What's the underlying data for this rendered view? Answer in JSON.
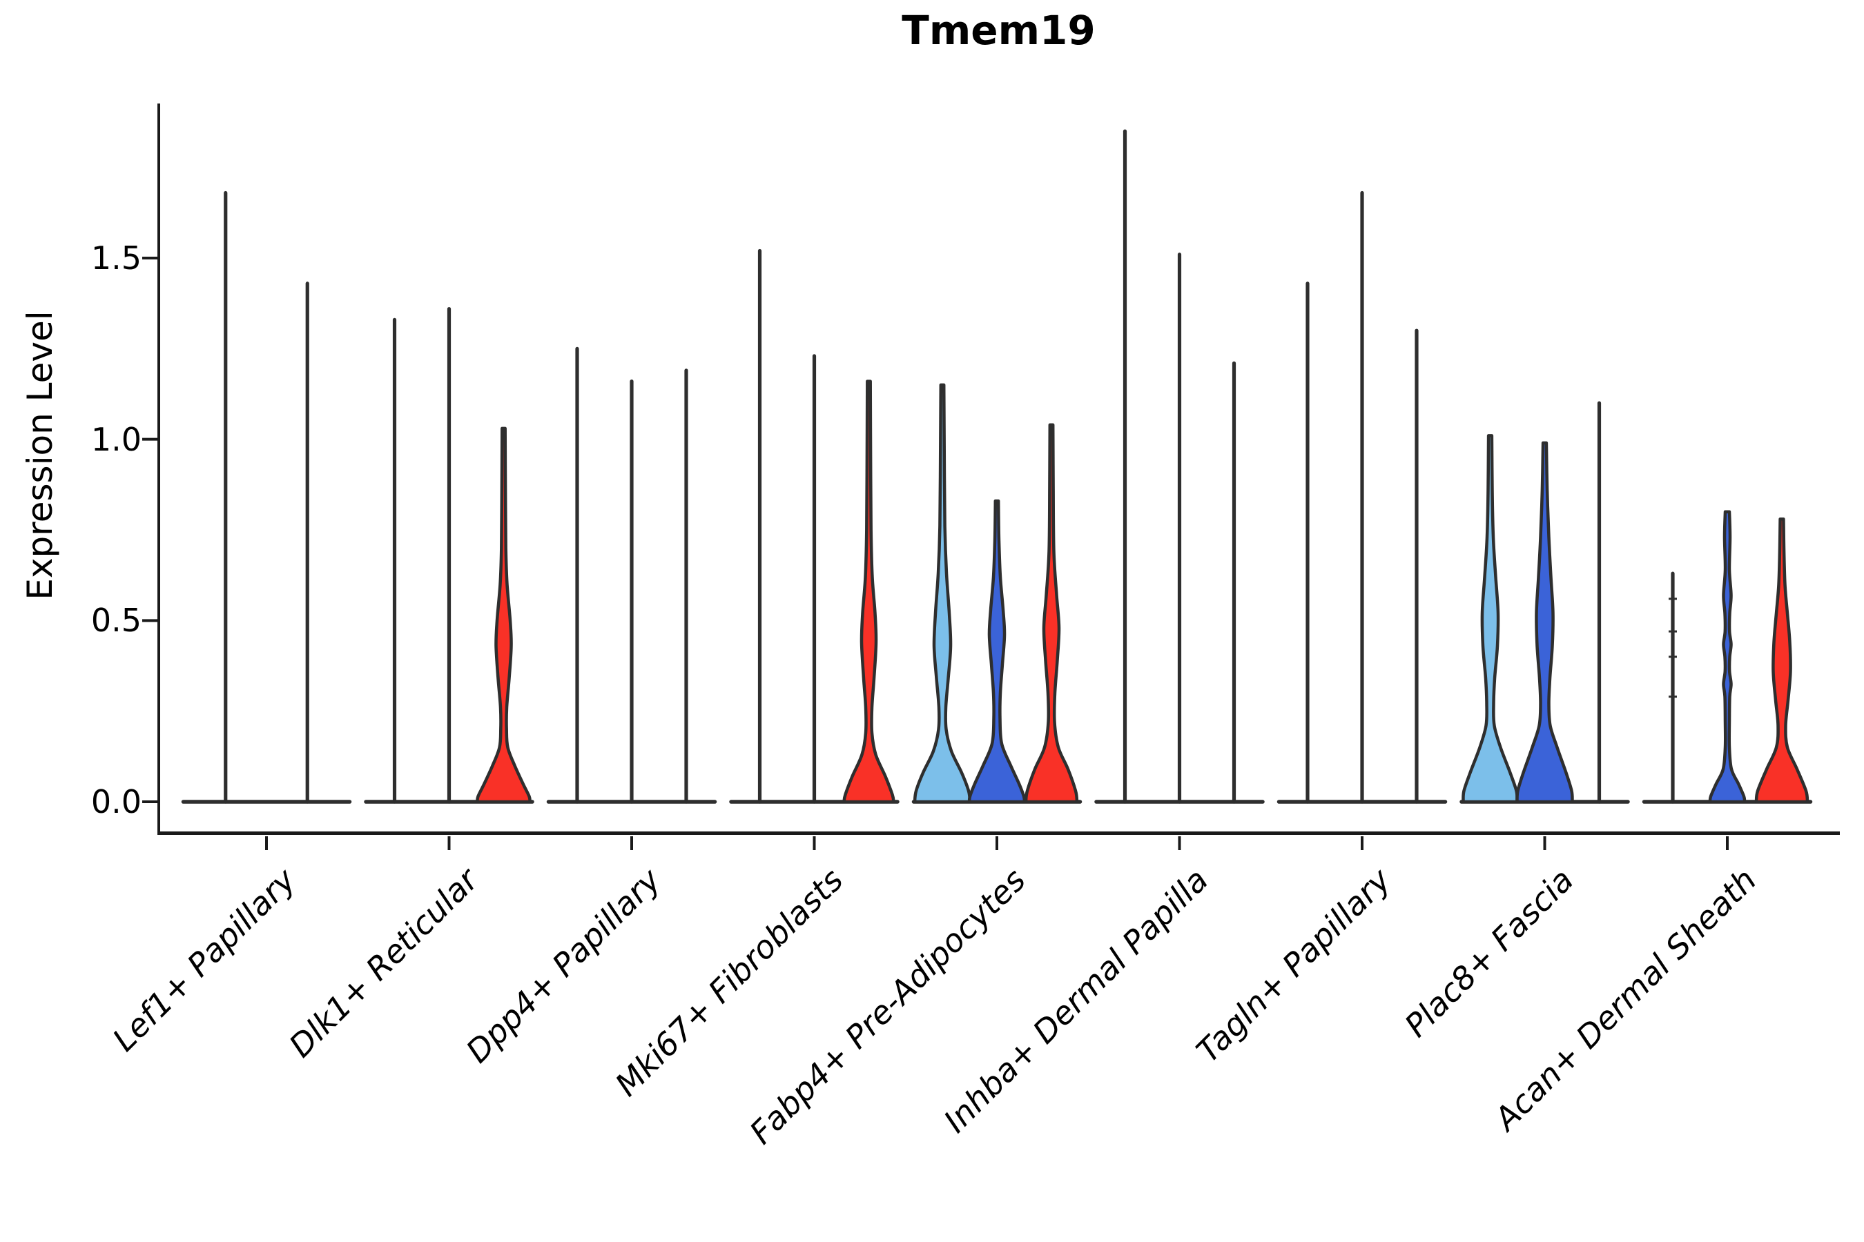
{
  "title": "Tmem19",
  "ylabel": "Expression Level",
  "chart_data": {
    "type": "violin",
    "title": "Tmem19",
    "xlabel": "",
    "ylabel": "Expression Level",
    "ylim": [
      -0.09,
      1.93
    ],
    "yticks": [
      0.0,
      0.5,
      1.0,
      1.5
    ],
    "ytick_labels": [
      "0.0",
      "0.5",
      "1.0",
      "1.5"
    ],
    "grid": false,
    "legend": "none",
    "palette": {
      "light_blue": "#7CBFEA",
      "blue": "#3B63D8",
      "red": "#F93127",
      "outline": "#2E2E2E",
      "spine": "#1A1A1A"
    },
    "categories": [
      "Lef1+ Papillary",
      "Dlk1+ Reticular",
      "Dpp4+ Papillary",
      "Mki67+ Fibroblasts",
      "Fabp4+ Pre-Adipocytes",
      "Inhba+ Dermal Papilla",
      "Tagln+ Papillary",
      "Plac8+ Fascia",
      "Acan+ Dermal Sheath"
    ],
    "groups": [
      {
        "label": "Lef1+ Papillary",
        "violins": [
          {
            "type": "spike",
            "max": 1.68,
            "fill": null
          },
          {
            "type": "spike",
            "max": 1.43,
            "fill": null
          }
        ]
      },
      {
        "label": "Dlk1+ Reticular",
        "violins": [
          {
            "type": "spike",
            "max": 1.33,
            "fill": null
          },
          {
            "type": "spike",
            "max": 1.36,
            "fill": null
          },
          {
            "type": "violin",
            "max": 1.03,
            "fill": "#F93127",
            "profile": [
              [
                1.03,
                2.2
              ],
              [
                0.86,
                2.6
              ],
              [
                0.7,
                3.2
              ],
              [
                0.6,
                5
              ],
              [
                0.5,
                9.5
              ],
              [
                0.43,
                11
              ],
              [
                0.34,
                8
              ],
              [
                0.26,
                4.5
              ],
              [
                0.2,
                4.2
              ],
              [
                0.15,
                6
              ],
              [
                0.1,
                16
              ],
              [
                0.05,
                28
              ],
              [
                0.015,
                37
              ],
              [
                0,
                38
              ]
            ]
          }
        ]
      },
      {
        "label": "Dpp4+ Papillary",
        "violins": [
          {
            "type": "spike",
            "max": 1.25,
            "fill": null
          },
          {
            "type": "spike",
            "max": 1.16,
            "fill": null
          },
          {
            "type": "spike",
            "max": 1.19,
            "fill": null
          }
        ]
      },
      {
        "label": "Mki67+ Fibroblasts",
        "violins": [
          {
            "type": "spike",
            "max": 1.52,
            "fill": null
          },
          {
            "type": "spike",
            "max": 1.23,
            "fill": null
          },
          {
            "type": "violin",
            "max": 1.16,
            "fill": "#F93127",
            "profile": [
              [
                1.16,
                2.2
              ],
              [
                0.95,
                2.6
              ],
              [
                0.75,
                3.2
              ],
              [
                0.62,
                5
              ],
              [
                0.52,
                9
              ],
              [
                0.44,
                10.5
              ],
              [
                0.34,
                7.5
              ],
              [
                0.26,
                4.5
              ],
              [
                0.19,
                4.5
              ],
              [
                0.13,
                10
              ],
              [
                0.07,
                24
              ],
              [
                0.02,
                34
              ],
              [
                0,
                36
              ]
            ]
          }
        ]
      },
      {
        "label": "Fabp4+ Pre-Adipocytes",
        "violins": [
          {
            "type": "violin",
            "max": 1.15,
            "fill": "#7CBFEA",
            "profile": [
              [
                1.15,
                2.2
              ],
              [
                0.95,
                2.8
              ],
              [
                0.76,
                3.6
              ],
              [
                0.63,
                6
              ],
              [
                0.52,
                10
              ],
              [
                0.43,
                12
              ],
              [
                0.34,
                8.5
              ],
              [
                0.26,
                5
              ],
              [
                0.2,
                5.5
              ],
              [
                0.14,
                13
              ],
              [
                0.08,
                28
              ],
              [
                0.03,
                38
              ],
              [
                0,
                40
              ]
            ]
          },
          {
            "type": "violin",
            "max": 0.83,
            "fill": "#3B63D8",
            "profile": [
              [
                0.83,
                2.2
              ],
              [
                0.72,
                3
              ],
              [
                0.62,
                5
              ],
              [
                0.53,
                9
              ],
              [
                0.46,
                11
              ],
              [
                0.38,
                8
              ],
              [
                0.3,
                5
              ],
              [
                0.23,
                4.5
              ],
              [
                0.16,
                7
              ],
              [
                0.1,
                20
              ],
              [
                0.05,
                32
              ],
              [
                0.015,
                39
              ],
              [
                0,
                40
              ]
            ]
          },
          {
            "type": "violin",
            "max": 1.04,
            "fill": "#F93127",
            "profile": [
              [
                1.04,
                2.2
              ],
              [
                0.87,
                2.6
              ],
              [
                0.69,
                3.5
              ],
              [
                0.57,
                7.5
              ],
              [
                0.48,
                11
              ],
              [
                0.39,
                8.5
              ],
              [
                0.3,
                5
              ],
              [
                0.22,
                4.5
              ],
              [
                0.15,
                10
              ],
              [
                0.09,
                24
              ],
              [
                0.03,
                35
              ],
              [
                0,
                37
              ]
            ]
          }
        ]
      },
      {
        "label": "Inhba+ Dermal Papilla",
        "violins": [
          {
            "type": "spike",
            "max": 1.85,
            "fill": null
          },
          {
            "type": "spike",
            "max": 1.51,
            "fill": null
          },
          {
            "type": "spike",
            "max": 1.21,
            "fill": null
          }
        ]
      },
      {
        "label": "Tagln+ Papillary",
        "violins": [
          {
            "type": "spike",
            "max": 1.43,
            "fill": null
          },
          {
            "type": "spike",
            "max": 1.68,
            "fill": null
          },
          {
            "type": "spike",
            "max": 1.3,
            "fill": null
          }
        ]
      },
      {
        "label": "Plac8+ Fascia",
        "violins": [
          {
            "type": "violin",
            "max": 1.01,
            "fill": "#7CBFEA",
            "profile": [
              [
                1.01,
                2.4
              ],
              [
                0.86,
                3
              ],
              [
                0.73,
                4.5
              ],
              [
                0.62,
                8
              ],
              [
                0.52,
                11.5
              ],
              [
                0.43,
                10.5
              ],
              [
                0.34,
                6.5
              ],
              [
                0.27,
                5
              ],
              [
                0.21,
                6
              ],
              [
                0.15,
                15
              ],
              [
                0.08,
                29
              ],
              [
                0.03,
                38
              ],
              [
                0,
                39
              ]
            ]
          },
          {
            "type": "violin",
            "max": 0.99,
            "fill": "#3B63D8",
            "profile": [
              [
                0.99,
                2.4
              ],
              [
                0.86,
                3.6
              ],
              [
                0.73,
                6
              ],
              [
                0.62,
                9
              ],
              [
                0.52,
                12
              ],
              [
                0.43,
                11
              ],
              [
                0.34,
                7.5
              ],
              [
                0.27,
                6
              ],
              [
                0.21,
                8
              ],
              [
                0.15,
                18
              ],
              [
                0.08,
                31
              ],
              [
                0.03,
                39
              ],
              [
                0,
                40
              ]
            ]
          },
          {
            "type": "spike",
            "max": 1.1,
            "fill": null
          }
        ]
      },
      {
        "label": "Acan+ Dermal Sheath",
        "violins": [
          {
            "type": "spike",
            "max": 0.63,
            "fill": null,
            "dashes": [
              0.56,
              0.47,
              0.4,
              0.29
            ]
          },
          {
            "type": "violin",
            "max": 0.8,
            "fill": "#3B63D8",
            "profile": [
              [
                0.8,
                3
              ],
              [
                0.73,
                4
              ],
              [
                0.64,
                3
              ],
              [
                0.57,
                5.5
              ],
              [
                0.52,
                3.5
              ],
              [
                0.47,
                3.2
              ],
              [
                0.435,
                5.5
              ],
              [
                0.4,
                3.5
              ],
              [
                0.36,
                3.2
              ],
              [
                0.325,
                5.5
              ],
              [
                0.29,
                3.5
              ],
              [
                0.22,
                3
              ],
              [
                0.15,
                3
              ],
              [
                0.09,
                6
              ],
              [
                0.05,
                16
              ],
              [
                0.015,
                24
              ],
              [
                0,
                25
              ]
            ]
          },
          {
            "type": "violin",
            "max": 0.78,
            "fill": "#F93127",
            "profile": [
              [
                0.78,
                2.4
              ],
              [
                0.7,
                3
              ],
              [
                0.6,
                4.5
              ],
              [
                0.52,
                8
              ],
              [
                0.44,
                11.5
              ],
              [
                0.36,
                12.5
              ],
              [
                0.28,
                9
              ],
              [
                0.21,
                5.5
              ],
              [
                0.15,
                8
              ],
              [
                0.09,
                22
              ],
              [
                0.03,
                35
              ],
              [
                0,
                37
              ]
            ]
          }
        ]
      }
    ]
  }
}
